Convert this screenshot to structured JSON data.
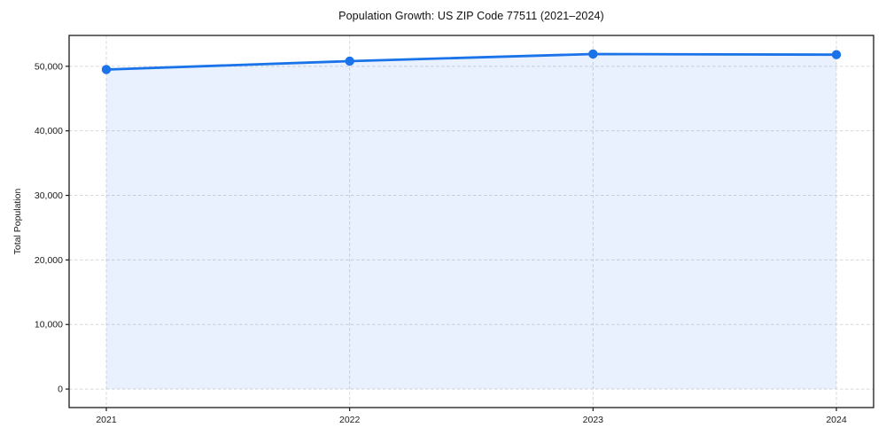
{
  "title": "Population Growth: US ZIP Code 77511 (2021–2024)",
  "chart_data": {
    "type": "line",
    "title": "Population Growth: US ZIP Code 77511 (2021–2024)",
    "xlabel": "",
    "ylabel": "Total Population",
    "categories": [
      "2021",
      "2022",
      "2023",
      "2024"
    ],
    "series": [
      {
        "name": "Total Population",
        "values": [
          49500,
          50800,
          51900,
          51800
        ]
      }
    ],
    "area_fill_to": 0,
    "markers": true,
    "x_tick_labels": [
      "2021",
      "2022",
      "2023",
      "2024"
    ],
    "y_tick_values": [
      0,
      10000,
      20000,
      30000,
      40000,
      50000
    ],
    "y_tick_labels": [
      "0",
      "10,000",
      "20,000",
      "30,000",
      "40,000",
      "50,000"
    ],
    "ylim": [
      -2870,
      54780
    ],
    "grid": "dashed both axes",
    "legend_position": "none",
    "colors": {
      "line": "#1a73e8",
      "fill": "rgba(26,115,232,0.10)",
      "grid": "#d7d7d7",
      "spine": "#1a1a1a",
      "text": "#1a1a1a",
      "background": "#ffffff"
    }
  }
}
